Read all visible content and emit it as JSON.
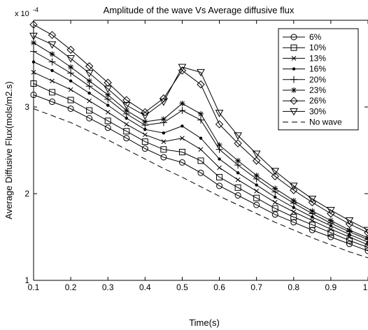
{
  "chart_data": {
    "type": "line",
    "title": "Amplitude of the wave Vs Average diffusive flux",
    "xlabel": "Time(s)",
    "ylabel": "Average Diffusive Flux(mols/m2.s)",
    "y_exponent_base": "x 10",
    "y_exponent_power": "-4",
    "xlim": [
      0.1,
      1.0
    ],
    "ylim": [
      1,
      4
    ],
    "x_ticks": [
      "0.1",
      "0.2",
      "0.3",
      "0.4",
      "0.5",
      "0.6",
      "0.7",
      "0.8",
      "0.9",
      "1"
    ],
    "y_ticks": [
      "1",
      "2",
      "3"
    ],
    "grid": false,
    "legend_position": "top-right",
    "x": [
      0.1,
      0.15,
      0.2,
      0.25,
      0.3,
      0.35,
      0.4,
      0.45,
      0.5,
      0.55,
      0.6,
      0.65,
      0.7,
      0.75,
      0.8,
      0.85,
      0.9,
      0.95,
      1.0
    ],
    "series": [
      {
        "name": "6%",
        "marker": "circle",
        "values": [
          3.14,
          3.06,
          2.98,
          2.87,
          2.76,
          2.64,
          2.52,
          2.42,
          2.36,
          2.24,
          2.09,
          1.98,
          1.87,
          1.76,
          1.67,
          1.58,
          1.5,
          1.42,
          1.34
        ]
      },
      {
        "name": "10%",
        "marker": "square",
        "values": [
          3.27,
          3.17,
          3.08,
          2.96,
          2.84,
          2.72,
          2.6,
          2.51,
          2.48,
          2.38,
          2.19,
          2.07,
          1.95,
          1.83,
          1.73,
          1.64,
          1.55,
          1.46,
          1.38
        ]
      },
      {
        "name": "13%",
        "marker": "x",
        "values": [
          3.4,
          3.3,
          3.2,
          3.07,
          2.94,
          2.8,
          2.68,
          2.6,
          2.64,
          2.51,
          2.3,
          2.16,
          2.03,
          1.9,
          1.79,
          1.69,
          1.59,
          1.5,
          1.41
        ]
      },
      {
        "name": "16%",
        "marker": "dot",
        "values": [
          3.52,
          3.42,
          3.3,
          3.16,
          3.02,
          2.87,
          2.74,
          2.7,
          2.78,
          2.64,
          2.4,
          2.24,
          2.1,
          1.96,
          1.84,
          1.73,
          1.63,
          1.53,
          1.44
        ]
      },
      {
        "name": "20%",
        "marker": "plus",
        "values": [
          3.64,
          3.52,
          3.39,
          3.24,
          3.09,
          2.92,
          2.79,
          2.82,
          2.96,
          2.85,
          2.51,
          2.33,
          2.17,
          2.02,
          1.89,
          1.77,
          1.66,
          1.56,
          1.47
        ]
      },
      {
        "name": "23%",
        "marker": "star",
        "values": [
          3.74,
          3.61,
          3.46,
          3.3,
          3.14,
          2.96,
          2.83,
          2.86,
          3.04,
          2.92,
          2.56,
          2.38,
          2.21,
          2.06,
          1.92,
          1.8,
          1.69,
          1.58,
          1.49
        ]
      },
      {
        "name": "26%",
        "marker": "diamond",
        "values": [
          3.95,
          3.83,
          3.66,
          3.47,
          3.28,
          3.08,
          2.94,
          3.1,
          3.42,
          3.26,
          2.8,
          2.58,
          2.38,
          2.2,
          2.04,
          1.9,
          1.77,
          1.65,
          1.55
        ]
      },
      {
        "name": "30%",
        "marker": "triangle-down",
        "values": [
          3.82,
          3.72,
          3.56,
          3.39,
          3.21,
          3.02,
          2.9,
          3.06,
          3.46,
          3.4,
          2.93,
          2.67,
          2.46,
          2.26,
          2.09,
          1.94,
          1.81,
          1.69,
          1.58
        ]
      },
      {
        "name": "No wave",
        "marker": "none",
        "dashed": true,
        "values": [
          2.98,
          2.9,
          2.82,
          2.72,
          2.62,
          2.51,
          2.4,
          2.29,
          2.19,
          2.08,
          1.97,
          1.87,
          1.77,
          1.67,
          1.58,
          1.49,
          1.41,
          1.33,
          1.26
        ]
      }
    ]
  }
}
